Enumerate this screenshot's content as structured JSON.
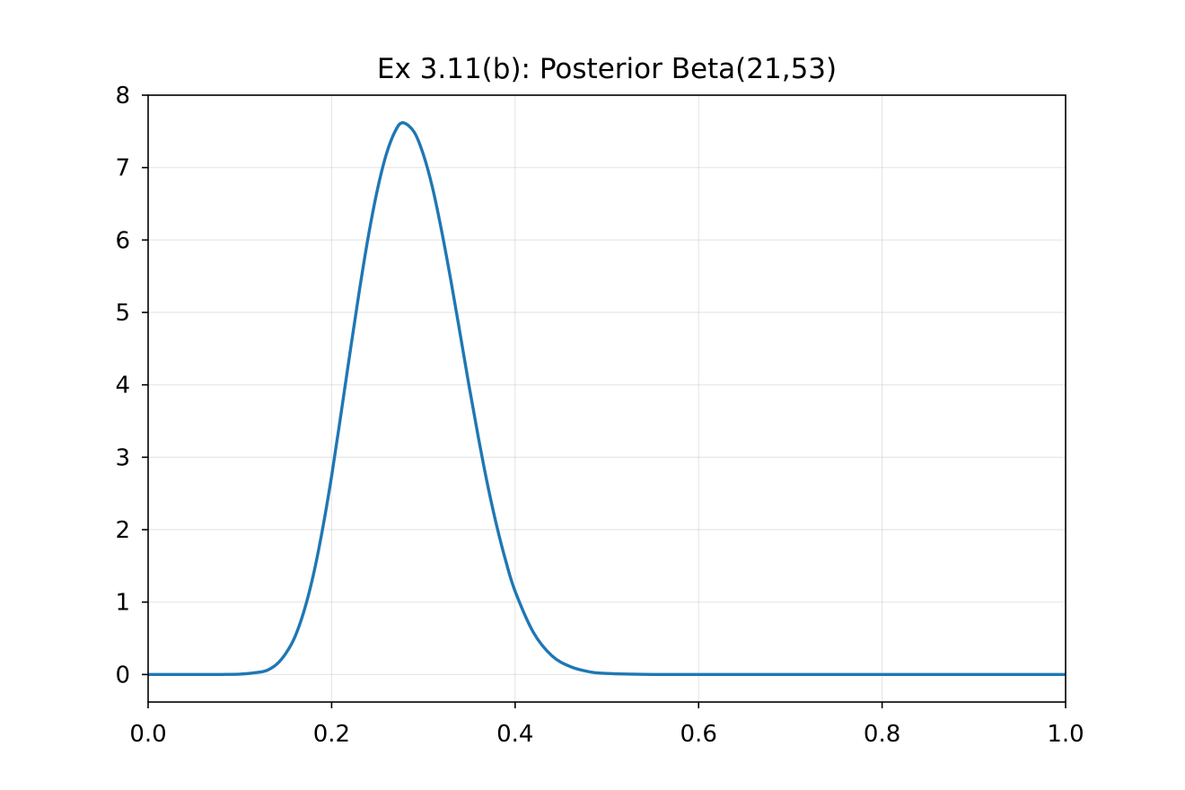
{
  "chart_data": {
    "type": "line",
    "title": "Ex 3.11(b): Posterior Beta(21,53)",
    "xlabel": "",
    "ylabel": "",
    "xlim": [
      0.0,
      1.0
    ],
    "ylim": [
      -0.38,
      8.0
    ],
    "grid": true,
    "x_ticks": [
      0.0,
      0.2,
      0.4,
      0.6,
      0.8,
      1.0
    ],
    "x_tick_labels": [
      "0.0",
      "0.2",
      "0.4",
      "0.6",
      "0.8",
      "1.0"
    ],
    "y_ticks": [
      0,
      1,
      2,
      3,
      4,
      5,
      6,
      7,
      8
    ],
    "y_tick_labels": [
      "0",
      "1",
      "2",
      "3",
      "4",
      "5",
      "6",
      "7",
      "8"
    ],
    "series": [
      {
        "color": "#1f77b4",
        "x": [
          0.0,
          0.05,
          0.08,
          0.1,
          0.12,
          0.13,
          0.14,
          0.15,
          0.16,
          0.17,
          0.18,
          0.19,
          0.2,
          0.21,
          0.22,
          0.23,
          0.24,
          0.25,
          0.26,
          0.27,
          0.2778,
          0.29,
          0.3,
          0.31,
          0.32,
          0.33,
          0.34,
          0.35,
          0.36,
          0.37,
          0.38,
          0.39,
          0.4,
          0.42,
          0.44,
          0.46,
          0.48,
          0.5,
          0.55,
          0.6,
          0.7,
          0.8,
          0.9,
          1.0
        ],
        "y": [
          0.0,
          0.0,
          0.001,
          0.005,
          0.03,
          0.06,
          0.14,
          0.29,
          0.52,
          0.88,
          1.37,
          2.0,
          2.74,
          3.58,
          4.44,
          5.28,
          6.05,
          6.7,
          7.2,
          7.52,
          7.62,
          7.49,
          7.18,
          6.72,
          6.12,
          5.44,
          4.71,
          3.97,
          3.27,
          2.62,
          2.05,
          1.56,
          1.15,
          0.58,
          0.26,
          0.11,
          0.04,
          0.015,
          0.001,
          0.0,
          0.0,
          0.0,
          0.0,
          0.0
        ]
      }
    ]
  }
}
